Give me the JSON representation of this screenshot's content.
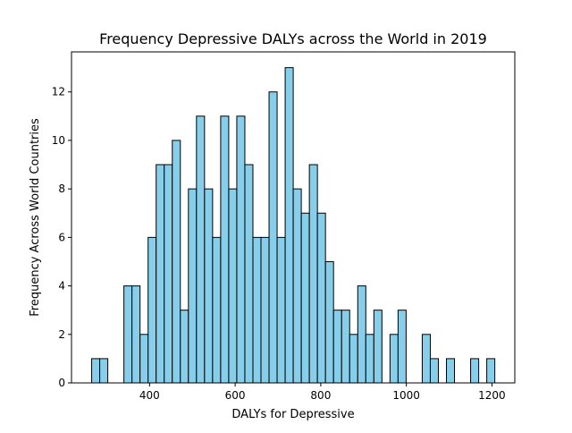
{
  "chart_data": {
    "type": "bar",
    "title": "Frequency Depressive DALYs across the World in 2019",
    "xlabel": "DALYs for Depressive",
    "ylabel": "Frequency Across World Countries",
    "xlim": [
      217.6,
      1253.4
    ],
    "ylim": [
      0,
      13.65
    ],
    "xticks": [
      400,
      600,
      800,
      1000,
      1200
    ],
    "yticks": [
      0,
      2,
      4,
      6,
      8,
      10,
      12
    ],
    "bin_start": 264.7,
    "bin_width": 18.84,
    "values": [
      1,
      1,
      0,
      0,
      4,
      4,
      2,
      6,
      9,
      9,
      10,
      3,
      8,
      11,
      8,
      6,
      11,
      8,
      11,
      9,
      6,
      6,
      12,
      6,
      13,
      8,
      7,
      9,
      7,
      5,
      3,
      3,
      2,
      4,
      2,
      3,
      0,
      2,
      3,
      0,
      0,
      2,
      1,
      0,
      1,
      0,
      0,
      1,
      0,
      1
    ],
    "bar_color": "#87ceeb",
    "edge_color": "#000000",
    "grid": false
  }
}
